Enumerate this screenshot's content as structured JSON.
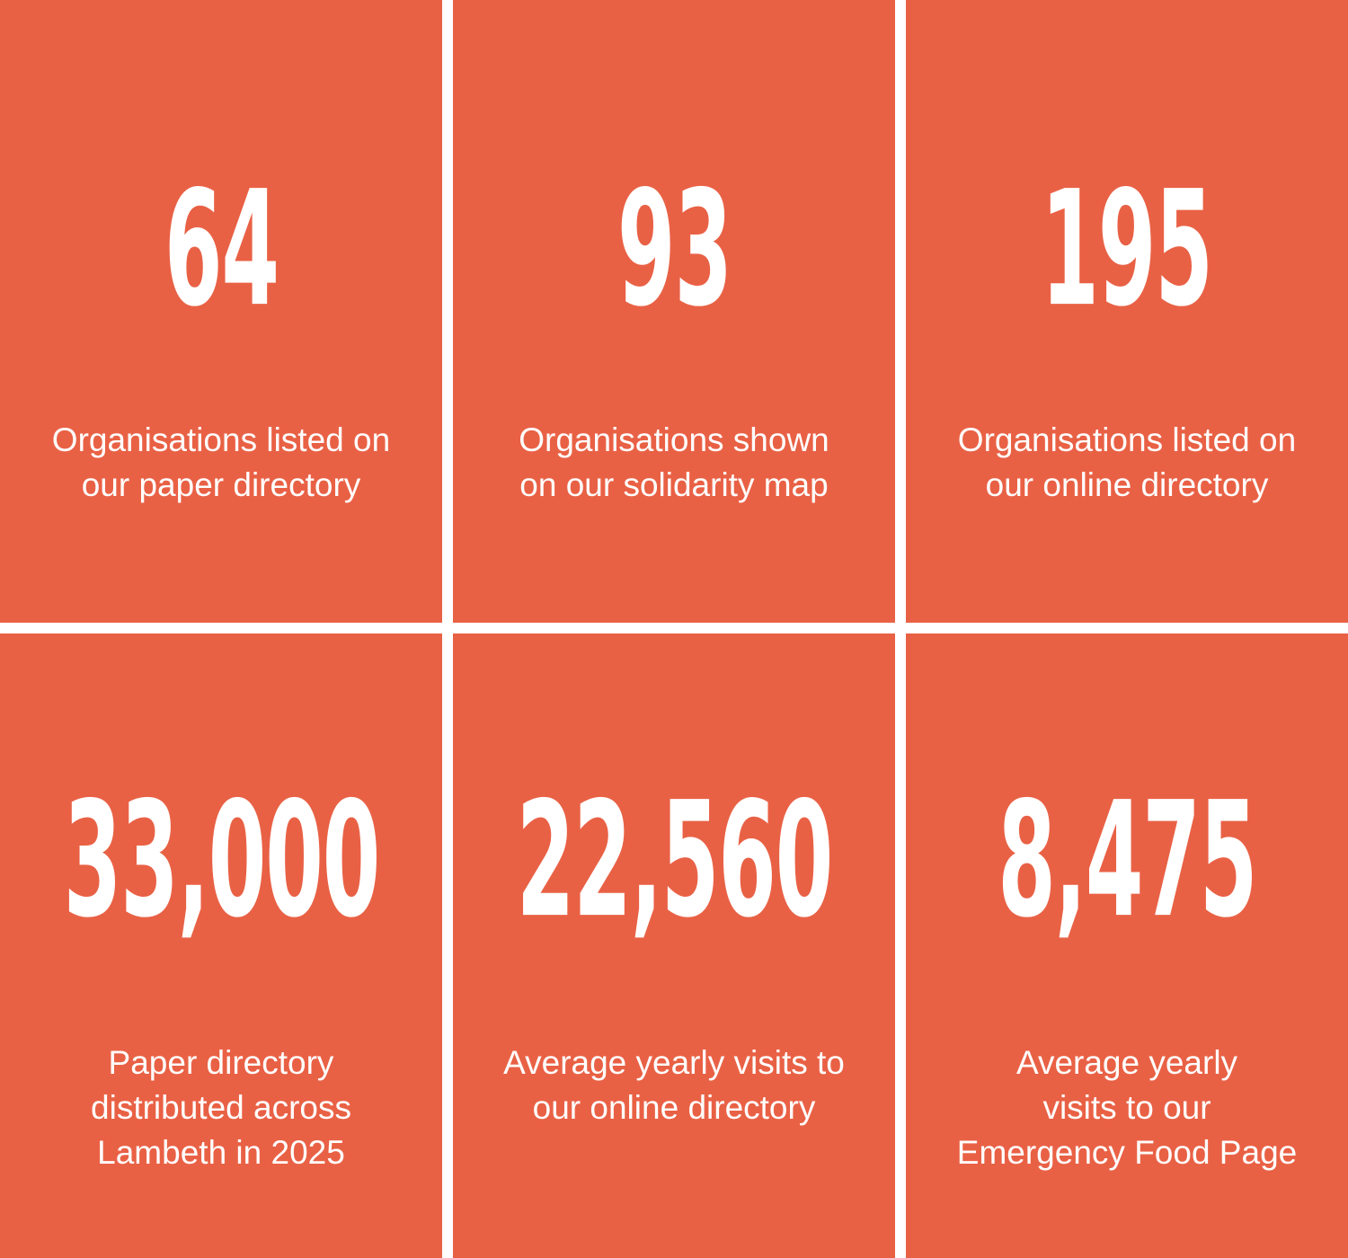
{
  "colors": {
    "tile_background": "#e96145",
    "text": "#ffffff",
    "divider": "#ffffff"
  },
  "stats": [
    {
      "value": "64",
      "label": "Organisations listed on\nour paper directory"
    },
    {
      "value": "93",
      "label": "Organisations shown\non our solidarity map"
    },
    {
      "value": "195",
      "label": "Organisations listed on\nour online directory"
    },
    {
      "value": "33,000",
      "label": "Paper directory\ndistributed across\nLambeth in 2025"
    },
    {
      "value": "22,560",
      "label": "Average yearly visits to\nour online directory"
    },
    {
      "value": "8,475",
      "label": "Average yearly\nvisits to our\nEmergency Food Page"
    }
  ]
}
